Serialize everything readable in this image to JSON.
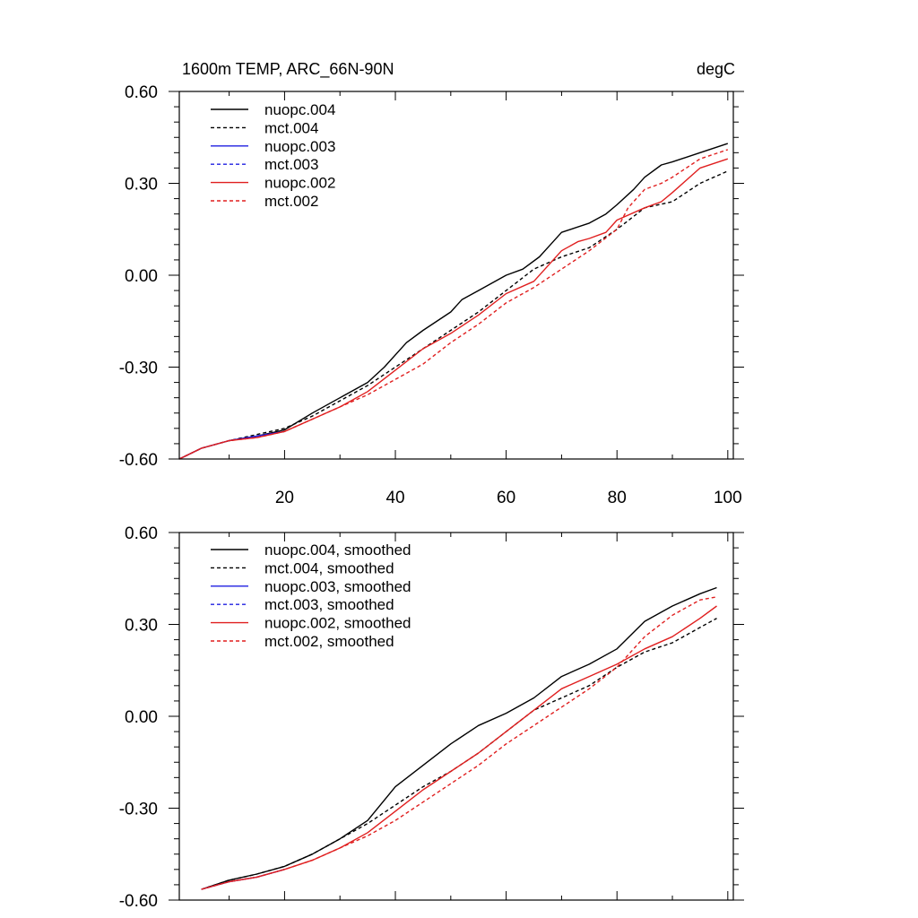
{
  "chart_data": [
    {
      "type": "line",
      "title_left": "1600m TEMP, ARC_66N-90N",
      "title_right": "degC",
      "xlim": [
        1,
        101
      ],
      "ylim": [
        -0.6,
        0.6
      ],
      "x_ticks": [
        20,
        40,
        60,
        80,
        100
      ],
      "x_tick_labels": [
        "20",
        "40",
        "60",
        "80",
        "100"
      ],
      "y_ticks": [
        0.6,
        0.3,
        0.0,
        -0.3,
        -0.6
      ],
      "y_tick_labels": [
        "0.60",
        "0.30",
        "0.00",
        "-0.30",
        "-0.60"
      ],
      "legend_position": "top-left",
      "series": [
        {
          "name": "nuopc.004",
          "color": "#000000",
          "dash": "solid",
          "x": [
            1,
            5,
            10,
            15,
            20,
            25,
            30,
            35,
            38,
            42,
            45,
            50,
            52,
            55,
            60,
            63,
            66,
            68,
            70,
            75,
            78,
            80,
            83,
            85,
            88,
            90,
            95,
            100
          ],
          "y": [
            -0.6,
            -0.565,
            -0.54,
            -0.525,
            -0.505,
            -0.45,
            -0.4,
            -0.35,
            -0.3,
            -0.22,
            -0.18,
            -0.12,
            -0.08,
            -0.05,
            0.0,
            0.02,
            0.06,
            0.1,
            0.14,
            0.17,
            0.2,
            0.23,
            0.28,
            0.32,
            0.36,
            0.37,
            0.4,
            0.43
          ]
        },
        {
          "name": "mct.004",
          "color": "#000000",
          "dash": "dashed",
          "x": [
            1,
            5,
            10,
            15,
            20,
            25,
            30,
            35,
            40,
            45,
            50,
            55,
            60,
            65,
            70,
            75,
            80,
            85,
            90,
            95,
            100
          ],
          "y": [
            -0.6,
            -0.565,
            -0.54,
            -0.52,
            -0.5,
            -0.46,
            -0.41,
            -0.36,
            -0.3,
            -0.24,
            -0.18,
            -0.12,
            -0.05,
            0.02,
            0.06,
            0.09,
            0.15,
            0.22,
            0.24,
            0.3,
            0.34
          ]
        },
        {
          "name": "nuopc.003",
          "color": "#1f1fe0",
          "dash": "solid",
          "x": [
            1,
            5,
            10,
            15,
            20
          ],
          "y": [
            -0.6,
            -0.565,
            -0.54,
            -0.525,
            -0.51
          ]
        },
        {
          "name": "mct.003",
          "color": "#1f1fe0",
          "dash": "dashed",
          "x": [
            1,
            5,
            10,
            15,
            20
          ],
          "y": [
            -0.6,
            -0.565,
            -0.54,
            -0.525,
            -0.51
          ]
        },
        {
          "name": "nuopc.002",
          "color": "#e01f1f",
          "dash": "solid",
          "x": [
            1,
            5,
            10,
            15,
            20,
            25,
            30,
            35,
            40,
            45,
            50,
            55,
            60,
            65,
            70,
            73,
            75,
            78,
            80,
            85,
            88,
            90,
            95,
            100
          ],
          "y": [
            -0.6,
            -0.565,
            -0.54,
            -0.53,
            -0.51,
            -0.47,
            -0.43,
            -0.38,
            -0.31,
            -0.24,
            -0.19,
            -0.13,
            -0.06,
            -0.02,
            0.08,
            0.11,
            0.12,
            0.14,
            0.18,
            0.22,
            0.24,
            0.27,
            0.35,
            0.38
          ]
        },
        {
          "name": "mct.002",
          "color": "#e01f1f",
          "dash": "dashed",
          "x": [
            1,
            5,
            10,
            15,
            20,
            25,
            30,
            35,
            40,
            45,
            50,
            55,
            60,
            65,
            70,
            75,
            80,
            82,
            85,
            88,
            90,
            95,
            100
          ],
          "y": [
            -0.6,
            -0.565,
            -0.54,
            -0.53,
            -0.51,
            -0.47,
            -0.43,
            -0.39,
            -0.34,
            -0.29,
            -0.22,
            -0.16,
            -0.09,
            -0.04,
            0.02,
            0.08,
            0.15,
            0.22,
            0.28,
            0.3,
            0.32,
            0.38,
            0.41
          ]
        }
      ]
    },
    {
      "type": "line",
      "xlim": [
        1,
        101
      ],
      "ylim": [
        -0.6,
        0.6
      ],
      "x_ticks": [
        20,
        40,
        60,
        80,
        100
      ],
      "y_ticks": [
        0.6,
        0.3,
        0.0,
        -0.3,
        -0.6
      ],
      "y_tick_labels": [
        "0.60",
        "0.30",
        "0.00",
        "-0.30",
        "-0.60"
      ],
      "legend_position": "top-left",
      "series": [
        {
          "name": "nuopc.004, smoothed",
          "color": "#000000",
          "dash": "solid",
          "x": [
            5,
            10,
            15,
            20,
            25,
            30,
            35,
            40,
            45,
            50,
            55,
            60,
            65,
            70,
            75,
            80,
            85,
            90,
            95,
            98
          ],
          "y": [
            -0.565,
            -0.535,
            -0.515,
            -0.49,
            -0.45,
            -0.4,
            -0.34,
            -0.23,
            -0.16,
            -0.09,
            -0.03,
            0.01,
            0.06,
            0.13,
            0.17,
            0.22,
            0.31,
            0.36,
            0.4,
            0.42
          ]
        },
        {
          "name": "mct.004, smoothed",
          "color": "#000000",
          "dash": "dashed",
          "x": [
            5,
            10,
            15,
            20,
            25,
            30,
            35,
            40,
            45,
            50,
            55,
            60,
            65,
            70,
            75,
            80,
            85,
            90,
            95,
            98
          ],
          "y": [
            -0.565,
            -0.535,
            -0.515,
            -0.49,
            -0.45,
            -0.4,
            -0.35,
            -0.29,
            -0.23,
            -0.18,
            -0.12,
            -0.05,
            0.02,
            0.06,
            0.1,
            0.16,
            0.21,
            0.24,
            0.29,
            0.32
          ]
        },
        {
          "name": "nuopc.003, smoothed",
          "color": "#1f1fe0",
          "dash": "solid",
          "x": [
            5,
            10,
            15,
            20
          ],
          "y": [
            -0.565,
            -0.54,
            -0.525,
            -0.5
          ]
        },
        {
          "name": "mct.003, smoothed",
          "color": "#1f1fe0",
          "dash": "dashed",
          "x": [
            5,
            10,
            15,
            20
          ],
          "y": [
            -0.565,
            -0.54,
            -0.525,
            -0.5
          ]
        },
        {
          "name": "nuopc.002, smoothed",
          "color": "#e01f1f",
          "dash": "solid",
          "x": [
            5,
            10,
            15,
            20,
            25,
            30,
            35,
            40,
            45,
            50,
            55,
            60,
            65,
            70,
            75,
            80,
            85,
            90,
            95,
            98
          ],
          "y": [
            -0.565,
            -0.54,
            -0.525,
            -0.5,
            -0.47,
            -0.43,
            -0.38,
            -0.31,
            -0.24,
            -0.18,
            -0.12,
            -0.05,
            0.02,
            0.09,
            0.13,
            0.17,
            0.22,
            0.26,
            0.32,
            0.36
          ]
        },
        {
          "name": "mct.002, smoothed",
          "color": "#e01f1f",
          "dash": "dashed",
          "x": [
            5,
            10,
            15,
            20,
            25,
            30,
            35,
            40,
            45,
            50,
            55,
            60,
            65,
            70,
            75,
            80,
            85,
            90,
            95,
            98
          ],
          "y": [
            -0.565,
            -0.54,
            -0.525,
            -0.5,
            -0.47,
            -0.43,
            -0.39,
            -0.34,
            -0.28,
            -0.22,
            -0.16,
            -0.09,
            -0.03,
            0.03,
            0.09,
            0.16,
            0.26,
            0.33,
            0.38,
            0.39
          ]
        }
      ]
    }
  ]
}
